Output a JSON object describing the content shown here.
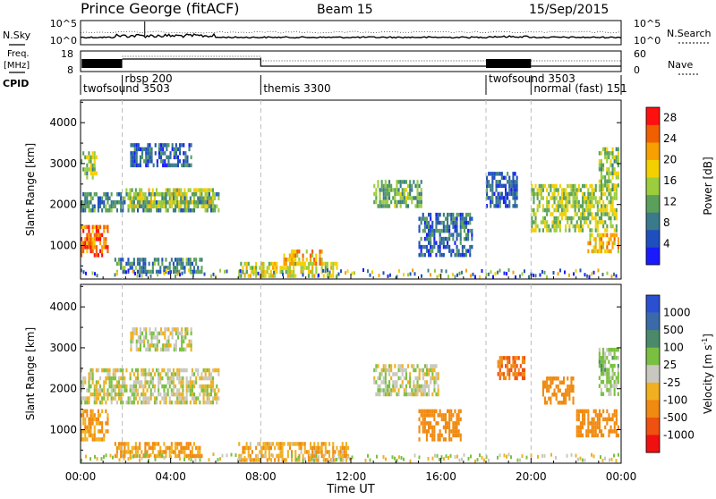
{
  "header": {
    "station": "Prince George (fitACF)",
    "beam": "Beam 15",
    "date": "15/Sep/2015"
  },
  "panel_labels": {
    "nsky": "N.Sky",
    "nsearch": "N.Search",
    "freq_line1": "Freq.",
    "freq_line2": "[MHz]",
    "nave": "Nave",
    "cpid": "CPID"
  },
  "noise_axis": {
    "left_ticks": [
      "10^5",
      "10^0"
    ],
    "right_ticks": [
      "10^5",
      "10^0"
    ]
  },
  "freq_axis": {
    "left_ticks": [
      "18",
      "8"
    ],
    "right_ticks": [
      "60",
      "0"
    ]
  },
  "cpid_segments": [
    {
      "label": "twofsound 3503",
      "start_hour": 0.0
    },
    {
      "label": "rbsp 200",
      "start_hour": 1.85
    },
    {
      "label": "themis 3300",
      "start_hour": 8.0
    },
    {
      "label": "twofsound 3503",
      "start_hour": 18.0
    },
    {
      "label": "normal (fast) 151",
      "start_hour": 20.0
    }
  ],
  "x_axis": {
    "label": "Time UT",
    "ticks": [
      "00:00",
      "04:00",
      "08:00",
      "12:00",
      "16:00",
      "20:00",
      "00:00"
    ],
    "range_hours": [
      0,
      24
    ]
  },
  "y_axis": {
    "label": "Slant Range [km]",
    "ticks": [
      "1000",
      "2000",
      "3000",
      "4000"
    ],
    "range_km": [
      180,
      4550
    ]
  },
  "colors": {
    "power_scale": [
      "#1a1aff",
      "#1f4fbf",
      "#3a7a8a",
      "#5aa05a",
      "#9ccd3c",
      "#f4d000",
      "#f7a000",
      "#f06000",
      "#ff1010"
    ],
    "velocity_scale": [
      "#2a4fd0",
      "#3a6aa8",
      "#4a8a6a",
      "#7ac040",
      "#c8c8c0",
      "#f0b020",
      "#f08a10",
      "#f05010",
      "#f01010"
    ],
    "nsky_line": "#000000",
    "mode_divider": "#bbbbbb"
  },
  "chart_data": [
    {
      "type": "heatmap",
      "panel": "power",
      "title": "Power [dB]",
      "xlabel": "Time UT",
      "ylabel": "Slant Range [km]",
      "colorbar_label": "Power [dB]",
      "colorbar_ticks": [
        "4",
        "8",
        "12",
        "16",
        "20",
        "24",
        "28"
      ],
      "colorbar_range": [
        0,
        30
      ],
      "regions": [
        {
          "t0": 0.0,
          "t1": 1.3,
          "r0": 700,
          "r1": 1500,
          "value": 24
        },
        {
          "t0": 0.0,
          "t1": 0.8,
          "r0": 2600,
          "r1": 3300,
          "value": 14
        },
        {
          "t0": 0.0,
          "t1": 6.2,
          "r0": 1800,
          "r1": 2300,
          "value": 10
        },
        {
          "t0": 2.0,
          "t1": 6.0,
          "r0": 1900,
          "r1": 2400,
          "value": 16
        },
        {
          "t0": 1.5,
          "t1": 5.5,
          "r0": 300,
          "r1": 700,
          "value": 9
        },
        {
          "t0": 2.2,
          "t1": 5.0,
          "r0": 2900,
          "r1": 3500,
          "value": 6
        },
        {
          "t0": 7.0,
          "t1": 11.5,
          "r0": 200,
          "r1": 600,
          "value": 16
        },
        {
          "t0": 9.0,
          "t1": 10.8,
          "r0": 500,
          "r1": 900,
          "value": 20
        },
        {
          "t0": 13.0,
          "t1": 15.2,
          "r0": 1900,
          "r1": 2600,
          "value": 12
        },
        {
          "t0": 15.0,
          "t1": 17.5,
          "r0": 700,
          "r1": 1800,
          "value": 7
        },
        {
          "t0": 18.0,
          "t1": 19.5,
          "r0": 1900,
          "r1": 2800,
          "value": 6
        },
        {
          "t0": 20.0,
          "t1": 23.9,
          "r0": 1300,
          "r1": 2500,
          "value": 15
        },
        {
          "t0": 22.5,
          "t1": 24.0,
          "r0": 800,
          "r1": 1300,
          "value": 20
        },
        {
          "t0": 23.0,
          "t1": 24.0,
          "r0": 2300,
          "r1": 3400,
          "value": 14
        }
      ]
    },
    {
      "type": "heatmap",
      "panel": "velocity",
      "title": "Velocity [m s^-1]",
      "xlabel": "Time UT",
      "ylabel": "Slant Range [km]",
      "colorbar_label": "Velocity [m s^-1]",
      "colorbar_ticks": [
        "1000",
        "500",
        "100",
        "25",
        "-25",
        "-100",
        "-500",
        "-1000"
      ],
      "regions": [
        {
          "t0": 0.0,
          "t1": 1.3,
          "r0": 700,
          "r1": 1500,
          "value": -100
        },
        {
          "t0": 0.0,
          "t1": 6.2,
          "r0": 1600,
          "r1": 2500,
          "value": 0
        },
        {
          "t0": 1.5,
          "t1": 5.5,
          "r0": 300,
          "r1": 700,
          "value": -100
        },
        {
          "t0": 2.2,
          "t1": 5.0,
          "r0": 2900,
          "r1": 3500,
          "value": 0
        },
        {
          "t0": 7.0,
          "t1": 12.0,
          "r0": 200,
          "r1": 700,
          "value": -80
        },
        {
          "t0": 13.0,
          "t1": 16.0,
          "r0": 1800,
          "r1": 2600,
          "value": 0
        },
        {
          "t0": 15.0,
          "t1": 17.0,
          "r0": 700,
          "r1": 1500,
          "value": -200
        },
        {
          "t0": 18.5,
          "t1": 19.8,
          "r0": 2200,
          "r1": 2800,
          "value": -500
        },
        {
          "t0": 20.5,
          "t1": 22.0,
          "r0": 1600,
          "r1": 2300,
          "value": -400
        },
        {
          "t0": 22.0,
          "t1": 24.0,
          "r0": 800,
          "r1": 1500,
          "value": -200
        },
        {
          "t0": 23.0,
          "t1": 24.0,
          "r0": 1800,
          "r1": 3000,
          "value": 50
        }
      ]
    }
  ]
}
